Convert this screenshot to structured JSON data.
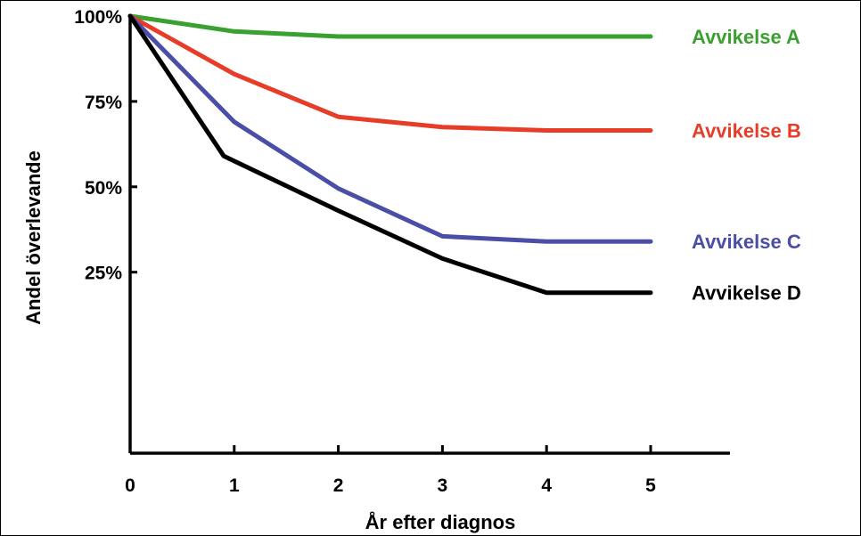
{
  "chart_data": {
    "type": "line",
    "title": "",
    "xlabel": "År efter diagnos",
    "ylabel": "Andel överlevande",
    "xlim": [
      0,
      5.7
    ],
    "ylim": [
      -0.28,
      1.0
    ],
    "xticks": [
      {
        "value": 0,
        "label": "0"
      },
      {
        "value": 1,
        "label": "1"
      },
      {
        "value": 2,
        "label": "2"
      },
      {
        "value": 3,
        "label": "3"
      },
      {
        "value": 4,
        "label": "4"
      },
      {
        "value": 5,
        "label": "5"
      }
    ],
    "yticks": [
      {
        "value": 1.0,
        "label": "100%"
      },
      {
        "value": 0.75,
        "label": "75%"
      },
      {
        "value": 0.5,
        "label": "50%"
      },
      {
        "value": 0.25,
        "label": "25%"
      }
    ],
    "grid": false,
    "legend": "inline-right",
    "series": [
      {
        "name": "Avvikelse A",
        "color": "#3aa030",
        "points": [
          [
            0,
            1.0
          ],
          [
            1,
            0.955
          ],
          [
            2,
            0.94
          ],
          [
            3,
            0.94
          ],
          [
            4,
            0.94
          ],
          [
            5,
            0.94
          ]
        ]
      },
      {
        "name": "Avvikelse B",
        "color": "#e63c28",
        "points": [
          [
            0,
            1.0
          ],
          [
            1,
            0.83
          ],
          [
            2,
            0.705
          ],
          [
            3,
            0.675
          ],
          [
            4,
            0.665
          ],
          [
            5,
            0.665
          ]
        ]
      },
      {
        "name": "Avvikelse C",
        "color": "#4a4ea6",
        "points": [
          [
            0,
            1.0
          ],
          [
            1,
            0.69
          ],
          [
            2,
            0.495
          ],
          [
            3,
            0.355
          ],
          [
            4,
            0.34
          ],
          [
            5,
            0.34
          ]
        ]
      },
      {
        "name": "Avvikelse D",
        "color": "#000000",
        "points": [
          [
            0,
            1.0
          ],
          [
            0.9,
            0.59
          ],
          [
            2,
            0.43
          ],
          [
            3,
            0.29
          ],
          [
            4,
            0.19
          ],
          [
            4.1,
            0.19
          ],
          [
            5,
            0.19
          ]
        ]
      }
    ]
  }
}
